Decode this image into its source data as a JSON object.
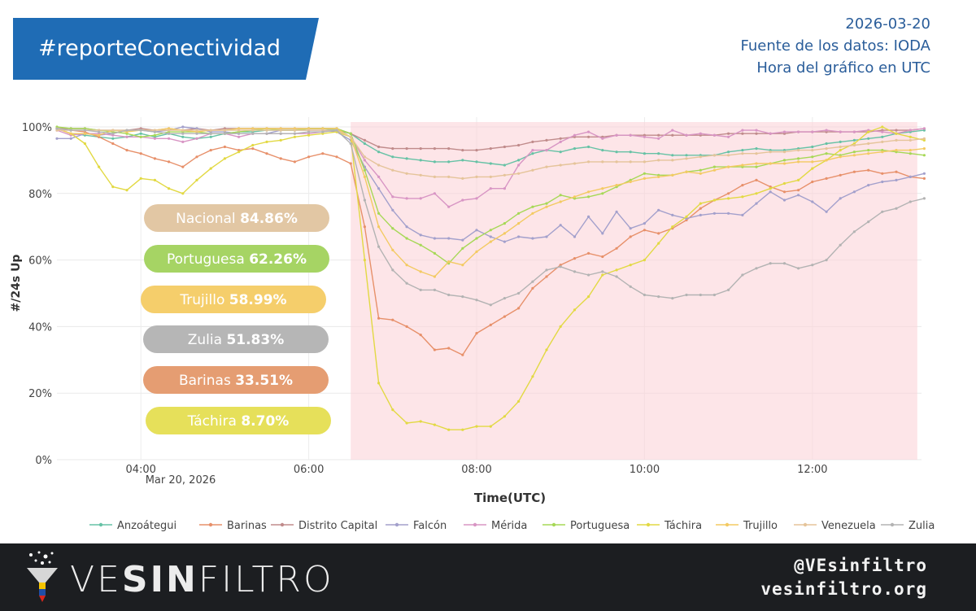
{
  "banner": {
    "hashtag": "#reporteConectividad",
    "color": "#1f6cb5"
  },
  "meta": {
    "date": "2026-03-20",
    "source": "Fuente de los datos: IODA",
    "timezone": "Hora del gráfico en UTC"
  },
  "footer": {
    "brand_part1": "VE",
    "brand_part2": "SIN",
    "brand_part3": "FILTRO",
    "handle": "@VEsinfiltro",
    "website": "vesinfiltro.org"
  },
  "chart_data": {
    "type": "line",
    "title": "",
    "xlabel": "Time(UTC)",
    "ylabel": "#/24s Up",
    "xlim": [
      3.0,
      13.3
    ],
    "ylim": [
      0,
      100
    ],
    "yticks": [
      0,
      20,
      40,
      60,
      80,
      100
    ],
    "ytick_labels": [
      "0%",
      "20%",
      "40%",
      "60%",
      "80%",
      "100%"
    ],
    "xticks": [
      4,
      6,
      8,
      10,
      12
    ],
    "xtick_labels": [
      "04:00",
      "06:00",
      "08:00",
      "10:00",
      "12:00"
    ],
    "xdate_label": "Mar 20, 2026",
    "highlight_range": [
      6.5,
      13.25
    ],
    "x": [
      3.0,
      3.167,
      3.333,
      3.5,
      3.667,
      3.833,
      4.0,
      4.167,
      4.333,
      4.5,
      4.667,
      4.833,
      5.0,
      5.167,
      5.333,
      5.5,
      5.667,
      5.833,
      6.0,
      6.167,
      6.333,
      6.5,
      6.667,
      6.833,
      7.0,
      7.167,
      7.333,
      7.5,
      7.667,
      7.833,
      8.0,
      8.167,
      8.333,
      8.5,
      8.667,
      8.833,
      9.0,
      9.167,
      9.333,
      9.5,
      9.667,
      9.833,
      10.0,
      10.167,
      10.333,
      10.5,
      10.667,
      10.833,
      11.0,
      11.167,
      11.333,
      11.5,
      11.667,
      11.833,
      12.0,
      12.167,
      12.333,
      12.5,
      12.667,
      12.833,
      13.0,
      13.167,
      13.333
    ],
    "series": [
      {
        "name": "Anzoátegui",
        "color": "#66c2a5",
        "values": [
          99.5,
          98,
          97.5,
          97,
          96.5,
          97,
          98,
          97,
          98,
          97,
          96.5,
          97,
          98,
          98.5,
          98.5,
          99,
          99,
          99,
          99.5,
          99.5,
          99,
          98,
          95,
          92.5,
          91,
          90.5,
          90,
          89.5,
          89.5,
          90,
          89.5,
          89,
          88.5,
          90,
          92,
          93,
          92.5,
          93.5,
          94,
          93,
          92.5,
          92.5,
          92,
          92,
          91.5,
          91.5,
          91.5,
          91.5,
          92.5,
          93,
          93.5,
          93,
          93,
          93.5,
          94,
          95,
          95.5,
          96,
          96.5,
          97,
          98,
          98.5,
          99
        ]
      },
      {
        "name": "Barinas",
        "color": "#e7906a",
        "values": [
          99.5,
          99,
          98.5,
          97,
          95,
          93,
          92,
          90.5,
          89.5,
          88,
          91,
          93,
          94,
          93,
          93.5,
          92,
          90.5,
          89.5,
          91,
          92,
          91,
          89,
          70,
          42.5,
          42,
          40,
          37.5,
          33,
          33.5,
          31.5,
          38,
          40.5,
          43,
          45.5,
          51.5,
          55,
          58.5,
          60.5,
          62,
          61,
          63.5,
          67,
          69,
          68,
          69.5,
          72,
          75.5,
          78,
          80,
          82.5,
          84,
          82,
          80.5,
          81,
          83.5,
          84.5,
          85.5,
          86.5,
          87,
          86,
          86.5,
          85,
          84.5
        ]
      },
      {
        "name": "Distrito Capital",
        "color": "#c08b8b",
        "values": [
          99.5,
          99.5,
          99.5,
          99,
          99,
          99,
          99.5,
          99,
          99.5,
          99,
          99.5,
          99,
          99.5,
          99.5,
          99.5,
          99.5,
          99.5,
          99.5,
          99.5,
          99.5,
          99.5,
          98,
          96,
          94,
          93.5,
          93.5,
          93.5,
          93.5,
          93.5,
          93,
          93,
          93.5,
          94,
          94.5,
          95.5,
          96,
          96.5,
          97,
          97,
          97,
          97.5,
          97.5,
          97.5,
          97.5,
          97.5,
          97.5,
          97.5,
          97.5,
          98,
          98,
          98,
          98,
          98,
          98.5,
          98.5,
          98.5,
          98.5,
          98.5,
          98.5,
          99,
          99,
          99,
          99.5
        ]
      },
      {
        "name": "Falcón",
        "color": "#a3a0cc",
        "values": [
          96.5,
          96.5,
          98,
          97.5,
          98,
          99,
          99,
          98.5,
          99,
          100,
          99.5,
          98.5,
          98.5,
          98,
          98,
          98,
          99,
          99,
          99,
          99,
          98.5,
          96,
          88,
          81.5,
          75,
          70,
          67.5,
          66.5,
          66.5,
          66,
          69,
          67,
          65.5,
          67,
          66.5,
          67,
          70.5,
          67,
          73,
          68,
          74.5,
          69.5,
          71,
          75,
          73.5,
          72.5,
          73.5,
          74,
          74,
          73.5,
          77,
          80.5,
          78,
          79.5,
          77.5,
          74.5,
          78.5,
          80.5,
          82.5,
          83.5,
          84,
          85,
          86
        ]
      },
      {
        "name": "Mérida",
        "color": "#d895c4",
        "values": [
          99,
          97.5,
          98,
          98,
          97.5,
          97,
          97,
          96.5,
          96.5,
          95.5,
          96.5,
          98,
          98,
          97,
          98,
          98,
          98,
          98,
          98,
          98.5,
          99,
          97,
          90,
          85,
          79,
          78.5,
          78.5,
          80,
          76,
          78,
          78.5,
          81.5,
          81.5,
          88.5,
          93,
          93,
          95.5,
          97.5,
          98.5,
          96.5,
          97.5,
          97.5,
          97,
          96.5,
          99,
          97.5,
          98,
          97.5,
          97,
          99,
          99,
          98,
          98.5,
          98.5,
          98.5,
          99,
          98.5,
          98.5,
          99,
          98.5,
          98,
          99,
          99.5
        ]
      },
      {
        "name": "Portuguesa",
        "color": "#a6d856",
        "values": [
          100,
          99.5,
          99.5,
          99,
          98.5,
          98,
          97,
          97.5,
          98.5,
          98.5,
          98.5,
          98,
          98,
          98.5,
          99,
          99.5,
          99,
          99,
          99.5,
          99.5,
          99.5,
          98,
          87,
          74,
          69.5,
          66.5,
          64.5,
          62,
          59,
          63.5,
          66.5,
          69,
          71,
          74,
          76,
          77,
          79.5,
          78.5,
          79,
          80,
          82,
          84,
          86,
          85.5,
          85.5,
          86.5,
          87,
          88,
          88,
          88,
          88,
          89,
          90,
          90.5,
          91,
          92,
          91.5,
          92.5,
          93,
          93,
          92.5,
          92,
          91.5
        ]
      },
      {
        "name": "Táchira",
        "color": "#e2d943",
        "values": [
          99.5,
          98,
          95,
          88,
          82,
          81,
          84.5,
          84,
          81.5,
          80,
          84,
          87.5,
          90.5,
          92.5,
          94.5,
          95.5,
          96,
          97,
          97.5,
          98,
          98.5,
          97,
          60,
          23,
          15,
          11,
          11.5,
          10.5,
          9,
          9,
          10,
          10,
          13,
          17.5,
          25,
          33,
          40,
          45,
          49,
          55.5,
          57,
          58.5,
          60,
          65,
          70,
          73,
          77,
          78,
          78.5,
          79,
          80,
          81.5,
          83,
          84,
          87.5,
          90,
          93,
          95,
          98.5,
          100,
          98,
          97,
          96
        ]
      },
      {
        "name": "Trujillo",
        "color": "#f3ca62",
        "values": [
          99.5,
          98,
          98,
          97.5,
          99,
          98.5,
          99,
          99,
          99.5,
          99,
          98.5,
          99,
          99,
          99.5,
          99.5,
          99.5,
          99.5,
          99.5,
          99.5,
          99.5,
          99.5,
          97,
          85,
          70,
          63,
          58.5,
          56.5,
          55,
          59.5,
          58.5,
          62.5,
          65.5,
          68,
          71,
          74,
          76,
          77.5,
          79,
          80.5,
          81.5,
          82.5,
          83.5,
          84.5,
          85,
          85.5,
          86.5,
          86,
          87,
          88,
          88.5,
          89,
          89,
          89,
          89.5,
          89.5,
          90,
          91,
          91.5,
          92,
          92.5,
          93,
          93,
          93.5
        ]
      },
      {
        "name": "Venezuela",
        "color": "#e5c49a",
        "values": [
          99,
          99,
          99,
          99,
          99,
          99,
          99,
          99,
          99,
          99,
          99,
          99,
          99,
          99,
          99,
          99,
          99,
          99,
          99,
          99,
          99,
          97,
          91,
          88.5,
          87,
          86,
          85.5,
          85,
          85,
          84.5,
          85,
          85,
          85.5,
          86,
          87,
          88,
          88.5,
          89,
          89.5,
          89.5,
          89.5,
          89.5,
          89.5,
          90,
          90,
          90.5,
          91,
          91.5,
          91.5,
          92,
          92,
          92.5,
          92.5,
          93,
          93,
          93.5,
          94,
          94.5,
          95,
          95.5,
          96,
          96,
          96.5
        ]
      },
      {
        "name": "Zulia",
        "color": "#b3b3b3",
        "values": [
          99.5,
          99,
          99,
          98.5,
          98,
          99,
          99,
          98.5,
          98,
          98,
          98,
          98,
          98,
          98,
          98,
          98,
          98,
          98,
          98.5,
          98.5,
          99,
          95,
          78,
          64,
          57,
          53,
          51,
          51,
          49.5,
          49,
          48,
          46.5,
          48.5,
          50,
          53.5,
          57,
          58,
          56.5,
          55.5,
          56.5,
          55,
          52,
          49.5,
          49,
          48.5,
          49.5,
          49.5,
          49.5,
          51,
          55.5,
          57.5,
          59,
          59,
          57.5,
          58.5,
          60,
          64.5,
          68.5,
          71.5,
          74.5,
          75.5,
          77.5,
          78.5
        ]
      }
    ],
    "annotations": [
      {
        "label": "Nacional",
        "value": "84.86%",
        "color": "#e2c7a4",
        "text_color": "#ffffff"
      },
      {
        "label": "Portuguesa",
        "value": "62.26%",
        "color": "#a6d464",
        "text_color": "#ffffff"
      },
      {
        "label": "Trujillo",
        "value": "58.99%",
        "color": "#f5ce6b",
        "text_color": "#ffffff"
      },
      {
        "label": "Zulia",
        "value": "51.83%",
        "color": "#b6b6b6",
        "text_color": "#ffffff"
      },
      {
        "label": "Barinas",
        "value": "33.51%",
        "color": "#e59d72",
        "text_color": "#ffffff"
      },
      {
        "label": "Táchira",
        "value": "8.70%",
        "color": "#e6e05a",
        "text_color": "#ffffff"
      }
    ]
  }
}
